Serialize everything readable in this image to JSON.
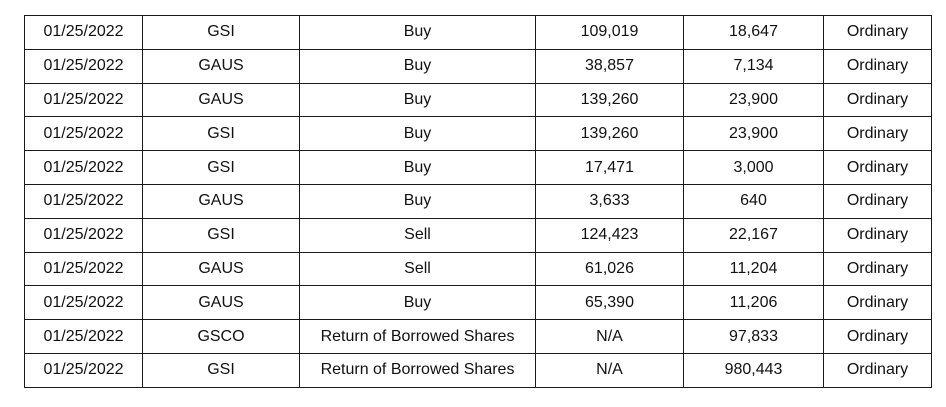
{
  "table": {
    "rows": [
      [
        "01/25/2022",
        "GSI",
        "Buy",
        "109,019",
        "18,647",
        "Ordinary"
      ],
      [
        "01/25/2022",
        "GAUS",
        "Buy",
        "38,857",
        "7,134",
        "Ordinary"
      ],
      [
        "01/25/2022",
        "GAUS",
        "Buy",
        "139,260",
        "23,900",
        "Ordinary"
      ],
      [
        "01/25/2022",
        "GSI",
        "Buy",
        "139,260",
        "23,900",
        "Ordinary"
      ],
      [
        "01/25/2022",
        "GSI",
        "Buy",
        "17,471",
        "3,000",
        "Ordinary"
      ],
      [
        "01/25/2022",
        "GAUS",
        "Buy",
        "3,633",
        "640",
        "Ordinary"
      ],
      [
        "01/25/2022",
        "GSI",
        "Sell",
        "124,423",
        "22,167",
        "Ordinary"
      ],
      [
        "01/25/2022",
        "GAUS",
        "Sell",
        "61,026",
        "11,204",
        "Ordinary"
      ],
      [
        "01/25/2022",
        "GAUS",
        "Buy",
        "65,390",
        "11,206",
        "Ordinary"
      ],
      [
        "01/25/2022",
        "GSCO",
        "Return of Borrowed Shares",
        "N/A",
        "97,833",
        "Ordinary"
      ],
      [
        "01/25/2022",
        "GSI",
        "Return of Borrowed Shares",
        "N/A",
        "980,443",
        "Ordinary"
      ]
    ]
  }
}
